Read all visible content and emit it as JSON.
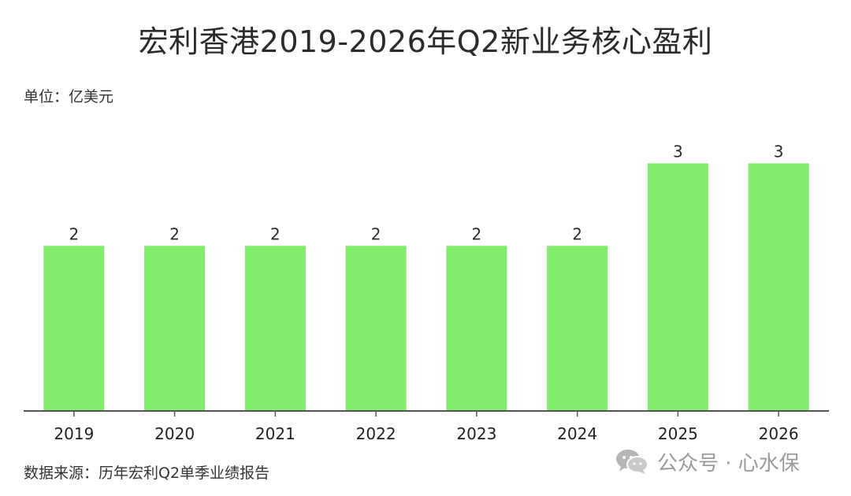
{
  "chart_data": {
    "type": "bar",
    "title": "宏利香港2019-2026年Q2新业务核心盈利",
    "unit_label": "单位：亿美元",
    "source": "数据来源：历年宏利Q2单季业绩报告",
    "categories": [
      "2019",
      "2020",
      "2021",
      "2022",
      "2023",
      "2024",
      "2025",
      "2026"
    ],
    "values": [
      2,
      2,
      2,
      2,
      2,
      2,
      3,
      3
    ],
    "data_labels": [
      "2",
      "2",
      "2",
      "2",
      "2",
      "2",
      "3",
      "3"
    ],
    "ylim": [
      0,
      3.5
    ],
    "xlabel": "",
    "ylabel": "",
    "grid": false,
    "legend": "none",
    "colors": {
      "bar": "#82ec6c",
      "first_label": "#3d8b2f",
      "axis": "#555555"
    }
  },
  "watermark": {
    "icon": "wechat-icon",
    "text": "公众号 · 心水保"
  }
}
